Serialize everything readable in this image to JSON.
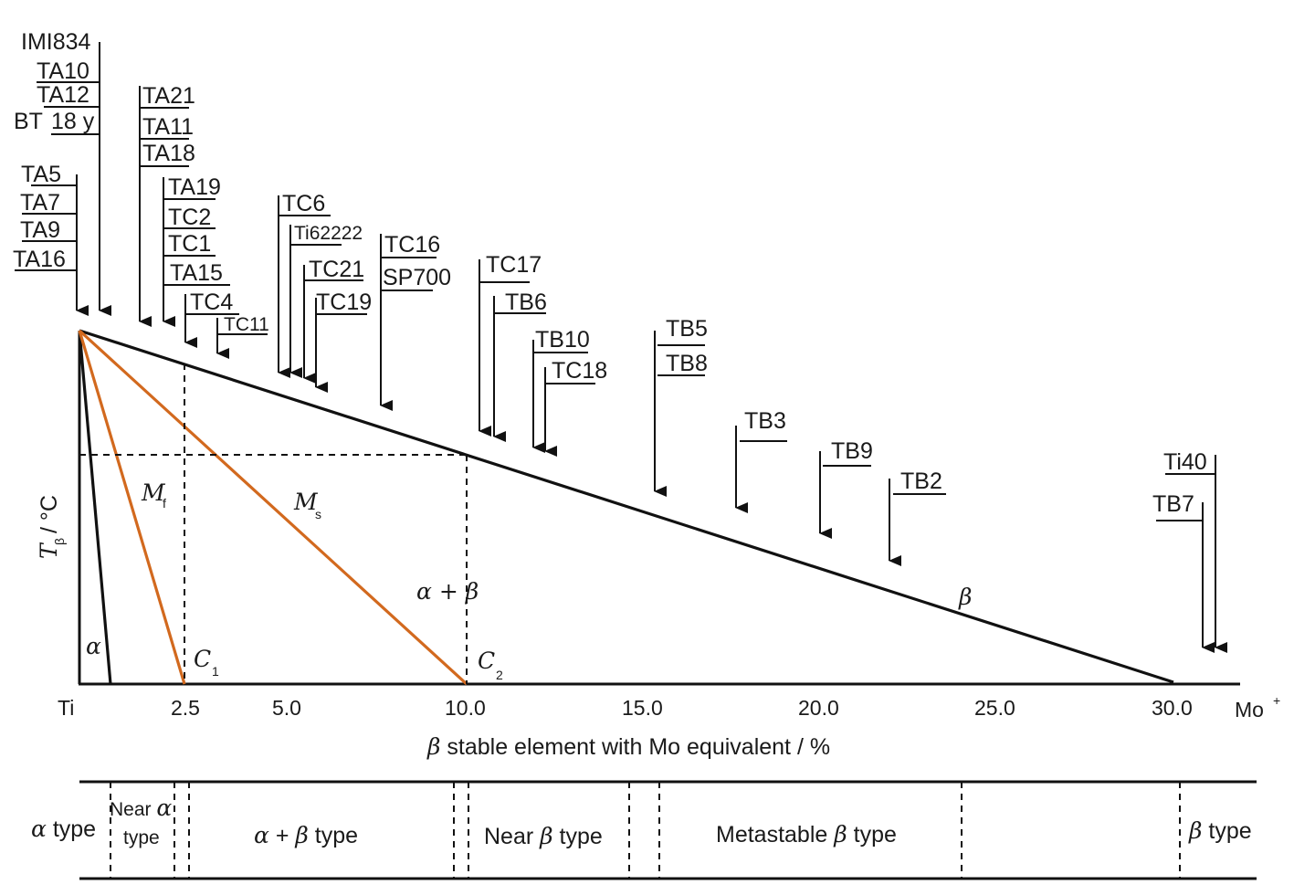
{
  "chart_data": {
    "type": "line",
    "y_axis_label": "T",
    "y_axis_label_sub": "β",
    "y_axis_unit": "/ °C",
    "x_axis_label": "β stable element with Mo equivalent / %",
    "x_origin_label": "Ti",
    "x_end_label": "Mo⁺",
    "x_ticks": [
      {
        "value": 2.5,
        "label": "2.5"
      },
      {
        "value": 5.0,
        "label": "5.0"
      },
      {
        "value": 10.0,
        "label": "10.0"
      },
      {
        "value": 15.0,
        "label": "15.0"
      },
      {
        "value": 20.0,
        "label": "20.0"
      },
      {
        "value": 25.0,
        "label": "25.0"
      },
      {
        "value": 30.0,
        "label": "30.0"
      }
    ],
    "xlim": [
      0,
      33
    ],
    "lines": [
      {
        "name": "beta-transus",
        "color": "#111111",
        "points": [
          [
            0,
            1.0
          ],
          [
            30.0,
            0.0
          ]
        ]
      },
      {
        "name": "alpha-boundary",
        "color": "#111111",
        "points": [
          [
            0,
            1.0
          ],
          [
            0.9,
            0.0
          ]
        ]
      },
      {
        "name": "Mf",
        "color": "#d2691e",
        "points": [
          [
            0,
            1.0
          ],
          [
            3.0,
            0.0
          ]
        ]
      },
      {
        "name": "Ms",
        "color": "#d2691e",
        "points": [
          [
            0,
            1.0
          ],
          [
            11.0,
            0.0
          ]
        ]
      }
    ],
    "dashed_lines": [
      {
        "name": "c1-vertical",
        "x": 3.0
      },
      {
        "name": "c2-vertical",
        "x": 11.0
      }
    ],
    "region_labels": {
      "alpha": "α",
      "alpha_beta": "α + β",
      "beta": "β",
      "mf": "M",
      "mf_sub": "f",
      "ms": "M",
      "ms_sub": "s",
      "c1": "C",
      "c1_sub": "1",
      "c2": "C",
      "c2_sub": "2"
    },
    "alloy_groups": [
      {
        "x": 0,
        "labels": [
          "TA5",
          "TA7",
          "TA9",
          "TA16"
        ]
      },
      {
        "x": 0.6,
        "labels": [
          "IMI834",
          "TA10",
          "TA12",
          "18 y"
        ],
        "prefix": "BT"
      },
      {
        "x": 1.7,
        "labels": [
          "TA21",
          "TA11",
          "TA18"
        ]
      },
      {
        "x": 2.4,
        "labels": [
          "TA19",
          "TC2",
          "TC1",
          "TA15"
        ]
      },
      {
        "x": 3.0,
        "labels": [
          "TC4"
        ]
      },
      {
        "x": 3.9,
        "labels": [
          "TC11"
        ]
      },
      {
        "x": 5.1,
        "labels": [
          "TC6"
        ]
      },
      {
        "x": 5.5,
        "labels": [
          "Ti62222"
        ]
      },
      {
        "x": 5.9,
        "labels": [
          "TC21"
        ]
      },
      {
        "x": 6.2,
        "labels": [
          "TC19"
        ]
      },
      {
        "x": 8.5,
        "labels": [
          "TC16",
          "SP700"
        ]
      },
      {
        "x": 11.3,
        "labels": [
          "TC17"
        ]
      },
      {
        "x": 11.7,
        "labels": [
          "TB6"
        ]
      },
      {
        "x": 12.9,
        "labels": [
          "TB10"
        ]
      },
      {
        "x": 13.2,
        "labels": [
          "TC18"
        ]
      },
      {
        "x": 16.8,
        "labels": [
          "TB5",
          "TB8"
        ]
      },
      {
        "x": 19.2,
        "labels": [
          "TB3"
        ]
      },
      {
        "x": 21.6,
        "labels": [
          "TB9"
        ]
      },
      {
        "x": 23.6,
        "labels": [
          "TB2"
        ]
      },
      {
        "x": 32.0,
        "labels": [
          "TB7"
        ]
      },
      {
        "x": 32.3,
        "labels": [
          "Ti40"
        ]
      }
    ],
    "classification": [
      {
        "label": "α type"
      },
      {
        "label": "Near α type"
      },
      {
        "label": "α + β type"
      },
      {
        "label": "Near β type"
      },
      {
        "label": "Metastable β type"
      },
      {
        "label": "β type"
      }
    ]
  },
  "text": {
    "ylabel_t": "T",
    "ylabel_beta": "β",
    "ylabel_unit": "/ °C",
    "xlabel_beta": "β",
    "xlabel_rest": " stable element with Mo equivalent / %",
    "x_origin": "Ti",
    "x_end": "Mo",
    "x_end_sup": "+",
    "alpha": "α",
    "alpha_beta": "α + β",
    "beta": "β",
    "mf_m": "M",
    "mf_sub": "f",
    "ms_m": "M",
    "ms_sub": "s",
    "c1": "C",
    "c1_sub": "1",
    "c2": "C",
    "c2_sub": "2",
    "cls_alpha_sym": "α",
    "cls_alpha_txt": " type",
    "cls_near_alpha_1": "Near ",
    "cls_near_alpha_sym": "α",
    "cls_near_alpha_2": "type",
    "cls_ab_1": "α",
    "cls_ab_2": " + ",
    "cls_ab_3": "β",
    "cls_ab_4": " type",
    "cls_near_beta_1": "Near ",
    "cls_near_beta_2": "β",
    "cls_near_beta_3": " type",
    "cls_meta_1": "Metastable ",
    "cls_meta_2": "β",
    "cls_meta_3": " type",
    "cls_beta_1": "β",
    "cls_beta_2": " type",
    "bt_prefix": "BT"
  },
  "ticks": [
    "2.5",
    "5.0",
    "10.0",
    "15.0",
    "20.0",
    "25.0",
    "30.0"
  ],
  "alloys": {
    "imi834": "IMI834",
    "ta10": "TA10",
    "ta12": "TA12",
    "y18": "18 y",
    "ta5": "TA5",
    "ta7": "TA7",
    "ta9": "TA9",
    "ta16": "TA16",
    "ta21": "TA21",
    "ta11": "TA11",
    "ta18": "TA18",
    "ta19": "TA19",
    "tc2": "TC2",
    "tc1": "TC1",
    "ta15": "TA15",
    "tc4": "TC4",
    "tc11": "TC11",
    "tc6": "TC6",
    "ti62222": "Ti62222",
    "tc21": "TC21",
    "tc19": "TC19",
    "tc16": "TC16",
    "sp700": "SP700",
    "tc17": "TC17",
    "tb6": "TB6",
    "tb10": "TB10",
    "tc18": "TC18",
    "tb5": "TB5",
    "tb8": "TB8",
    "tb3": "TB3",
    "tb9": "TB9",
    "tb2": "TB2",
    "ti40": "Ti40",
    "tb7": "TB7"
  }
}
